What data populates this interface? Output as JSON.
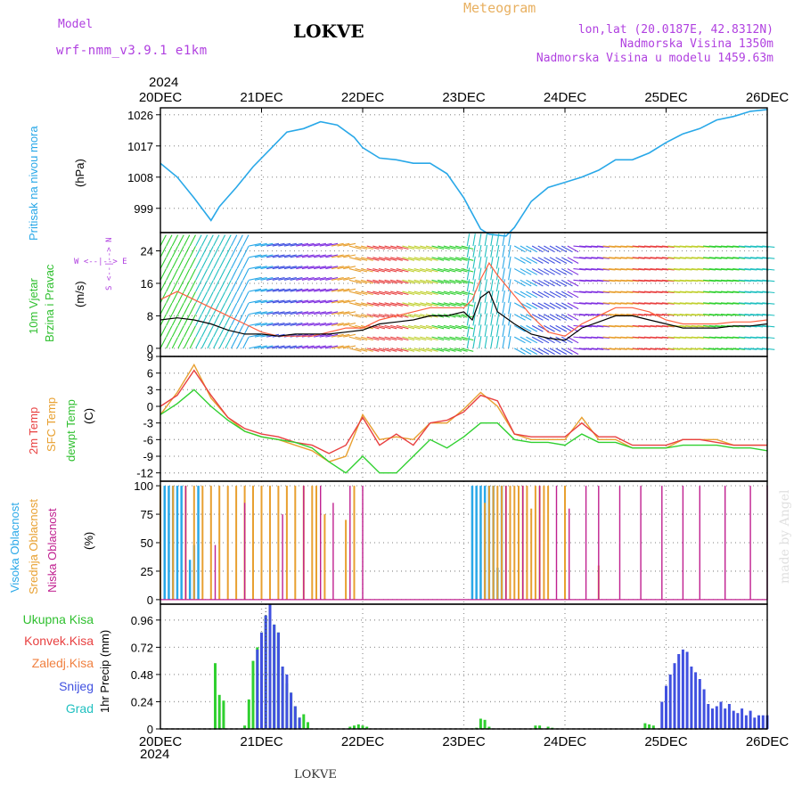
{
  "header": {
    "model_label": "Model",
    "model_name": "wrf-nmm_v3.9.1 e1km",
    "title": "LOKVE",
    "meteogram_label": "Meteogram",
    "lonlat": "lon,lat (20.0187E, 42.8312N)",
    "altitude": "Nadmorska Visina 1350m",
    "model_altitude": "Nadmorska Visina u modelu 1459.63m",
    "footer_title": "LOKVE",
    "watermark": "made by Angel"
  },
  "colors": {
    "pressure": "#29a8e8",
    "temp": "#e84040",
    "sfc_temp": "#e8a030",
    "dewpt": "#30d030",
    "high_cloud": "#29a8e8",
    "mid_cloud": "#e8a030",
    "low_cloud": "#c02090",
    "precip_total": "#30d030",
    "precip_snow": "#4050e0",
    "precip_grad": "#20c0c0"
  },
  "time_axis": {
    "year": "2024",
    "labels": [
      "20DEC",
      "21DEC",
      "22DEC",
      "23DEC",
      "24DEC",
      "25DEC",
      "26DEC"
    ]
  },
  "panel_labels": {
    "pressure": [
      "Pritisak na nivou mora",
      "(hPa)"
    ],
    "wind": [
      "10m Vjetar",
      "Brzina i Pravac",
      "(m/s)",
      "W <--|--> E",
      "S <--|--> N"
    ],
    "temp": [
      "2m Temp",
      "SFC Temp",
      "dewpt Temp",
      "(C)"
    ],
    "cloud": [
      "Visoka Oblacnost",
      "Srednja Oblacnost",
      "Niska Oblacnost",
      "(%)"
    ],
    "precip": [
      "Ukupna Kisa",
      "Konvek.Kisa",
      "Zaledj.Kisa",
      "Snijeg",
      "Grad",
      "1hr Precip (mm)"
    ]
  },
  "chart_data": [
    {
      "type": "line",
      "name": "pressure",
      "ylabel": "(hPa)",
      "yticks": [
        999,
        1008,
        1017,
        1026
      ],
      "ylim": [
        992,
        1028
      ],
      "xlim": [
        0,
        144
      ],
      "series": [
        {
          "name": "Pritisak na nivou mora",
          "x": [
            0,
            4,
            8,
            12,
            14,
            18,
            22,
            26,
            30,
            34,
            38,
            42,
            46,
            48,
            52,
            56,
            60,
            64,
            68,
            72,
            76,
            78,
            82,
            84,
            88,
            92,
            96,
            100,
            104,
            108,
            112,
            116,
            120,
            124,
            128,
            132,
            136,
            140,
            144
          ],
          "values": [
            1012,
            1008,
            1002,
            995.5,
            999.5,
            1005,
            1011,
            1016,
            1021,
            1022,
            1024,
            1023,
            1019.5,
            1016.5,
            1013.5,
            1013,
            1012,
            1012,
            1009,
            1002,
            993,
            991.5,
            991,
            993.5,
            1001,
            1005,
            1006.5,
            1008,
            1010,
            1013,
            1013,
            1015,
            1018,
            1020.5,
            1022,
            1024.5,
            1025.5,
            1027,
            1027.5
          ]
        }
      ]
    },
    {
      "type": "line",
      "name": "wind",
      "ylabel": "(m/s)",
      "yticks": [
        0,
        8,
        16,
        24
      ],
      "ylim": [
        -2,
        28.5
      ],
      "xlim": [
        0,
        144
      ],
      "series": [
        {
          "name": "mean",
          "x": [
            0,
            4,
            8,
            12,
            16,
            20,
            24,
            28,
            32,
            36,
            40,
            44,
            48,
            52,
            56,
            60,
            64,
            68,
            72,
            74,
            76,
            78,
            80,
            84,
            88,
            92,
            96,
            100,
            104,
            108,
            112,
            116,
            120,
            124,
            128,
            132,
            136,
            140,
            144
          ],
          "values": [
            7,
            7.5,
            7,
            6,
            4.5,
            3.5,
            3.5,
            3,
            3.5,
            3.5,
            3.5,
            4,
            4.5,
            6,
            6.5,
            7,
            8,
            8,
            9,
            7,
            12.5,
            14,
            9,
            6,
            3.5,
            2.5,
            2,
            5,
            6.5,
            8,
            8,
            7,
            6,
            5,
            5,
            5,
            5.5,
            5.5,
            6
          ]
        },
        {
          "name": "gust",
          "x": [
            0,
            4,
            8,
            12,
            16,
            20,
            24,
            28,
            32,
            36,
            40,
            44,
            48,
            52,
            56,
            60,
            64,
            68,
            72,
            74,
            76,
            78,
            80,
            84,
            88,
            92,
            96,
            100,
            104,
            108,
            112,
            116,
            120,
            124,
            128,
            132,
            136,
            140,
            144
          ],
          "values": [
            12,
            14,
            12,
            10,
            8,
            6,
            4,
            3,
            3,
            3,
            4,
            5,
            5,
            7,
            8,
            9,
            10,
            10,
            10,
            12,
            17,
            21,
            18,
            13,
            8,
            4,
            3,
            6,
            8,
            10,
            10,
            9,
            7,
            6,
            6,
            6,
            6.5,
            6.5,
            7
          ]
        }
      ]
    },
    {
      "type": "line",
      "name": "temperature",
      "ylabel": "(C)",
      "yticks": [
        -12,
        -9,
        -6,
        -3,
        0,
        3,
        6,
        9
      ],
      "ylim": [
        -13.5,
        9
      ],
      "xlim": [
        0,
        144
      ],
      "series": [
        {
          "name": "2m Temp",
          "x": [
            0,
            4,
            8,
            12,
            16,
            20,
            24,
            28,
            32,
            36,
            40,
            44,
            48,
            52,
            56,
            60,
            64,
            68,
            72,
            76,
            80,
            84,
            88,
            92,
            96,
            100,
            104,
            108,
            112,
            116,
            120,
            124,
            128,
            132,
            136,
            140,
            144
          ],
          "values": [
            0,
            2,
            6.5,
            2,
            -2,
            -4,
            -5,
            -5.5,
            -6.5,
            -7,
            -8.5,
            -7,
            -2,
            -7,
            -5,
            -7,
            -3,
            -2.5,
            -1,
            2,
            1,
            -5,
            -5.5,
            -5.5,
            -5.5,
            -3,
            -5.5,
            -5.5,
            -7,
            -7,
            -7,
            -6,
            -6,
            -6.5,
            -7,
            -7,
            -7
          ]
        },
        {
          "name": "SFC Temp",
          "x": [
            0,
            4,
            8,
            12,
            16,
            20,
            24,
            28,
            32,
            36,
            40,
            44,
            48,
            52,
            56,
            60,
            64,
            68,
            72,
            76,
            80,
            84,
            88,
            92,
            96,
            100,
            104,
            108,
            112,
            116,
            120,
            124,
            128,
            132,
            136,
            140,
            144
          ],
          "values": [
            -1.5,
            2.5,
            7.5,
            1.5,
            -2,
            -4.5,
            -5.5,
            -6,
            -7,
            -8,
            -10,
            -9,
            -1.5,
            -6,
            -5.5,
            -6,
            -3,
            -3,
            -0.5,
            2.5,
            0,
            -5,
            -6,
            -6,
            -6,
            -2,
            -6,
            -6,
            -7.5,
            -7.5,
            -7.5,
            -6,
            -6,
            -6,
            -7,
            -7,
            -7
          ]
        },
        {
          "name": "dewpt Temp",
          "x": [
            0,
            4,
            8,
            12,
            16,
            20,
            24,
            28,
            32,
            36,
            40,
            44,
            48,
            52,
            56,
            60,
            64,
            68,
            72,
            76,
            80,
            84,
            88,
            92,
            96,
            100,
            104,
            108,
            112,
            116,
            120,
            124,
            128,
            132,
            136,
            140,
            144
          ],
          "values": [
            -1.5,
            0.5,
            3,
            0,
            -2.5,
            -4.5,
            -5.5,
            -6,
            -6.5,
            -7.5,
            -10,
            -12,
            -9,
            -12,
            -12,
            -9,
            -6,
            -7.5,
            -5.5,
            -3,
            -3,
            -6,
            -6.5,
            -6.5,
            -7,
            -5,
            -6.5,
            -6.5,
            -7.5,
            -7.5,
            -7.5,
            -7,
            -7,
            -7,
            -7.5,
            -7.5,
            -8
          ]
        }
      ]
    },
    {
      "type": "bar",
      "name": "cloud cover",
      "ylabel": "(%)",
      "yticks": [
        0,
        25,
        50,
        75,
        100
      ],
      "ylim": [
        -4,
        104
      ],
      "xlim": [
        0,
        144
      ],
      "series": [
        {
          "name": "Visoka Oblacnost",
          "x": [
            1,
            2,
            3,
            4,
            5,
            7,
            8,
            9,
            74,
            75,
            76,
            77,
            78,
            79,
            80,
            81
          ],
          "values": [
            100,
            100,
            100,
            100,
            100,
            35,
            48,
            100,
            100,
            100,
            100,
            100,
            100,
            100,
            28,
            100
          ]
        },
        {
          "name": "Srednja Oblacnost",
          "x": [
            0,
            3,
            6,
            8,
            10,
            12,
            14,
            16,
            18,
            20,
            22,
            24,
            26,
            28,
            30,
            32,
            34,
            36,
            37,
            39,
            44,
            46,
            77,
            78,
            79,
            80,
            81,
            82,
            83,
            84,
            85,
            86,
            87,
            88,
            89,
            90,
            91,
            92,
            96,
            104
          ],
          "values": [
            100,
            100,
            100,
            100,
            100,
            100,
            100,
            100,
            100,
            100,
            100,
            100,
            100,
            100,
            100,
            100,
            100,
            100,
            100,
            75,
            70,
            100,
            85,
            100,
            100,
            100,
            100,
            100,
            100,
            100,
            100,
            100,
            100,
            80,
            100,
            100,
            100,
            100,
            100,
            30
          ]
        },
        {
          "name": "Niska Oblacnost",
          "x": [
            6,
            13,
            20,
            29,
            34,
            38,
            41,
            45,
            48,
            82,
            86,
            90,
            94,
            97,
            101,
            104,
            109,
            114,
            119,
            124,
            128,
            134,
            140,
            144
          ],
          "values": [
            100,
            48,
            85,
            75,
            100,
            100,
            85,
            100,
            100,
            100,
            100,
            100,
            100,
            80,
            100,
            100,
            100,
            100,
            100,
            100,
            100,
            100,
            100,
            100
          ]
        }
      ]
    },
    {
      "type": "bar",
      "name": "1hr precipitation",
      "ylabel": "1hr Precip (mm)",
      "yticks": [
        0,
        0.24,
        0.48,
        0.72,
        0.96
      ],
      "ylim": [
        0,
        1.1
      ],
      "xlim": [
        0,
        144
      ],
      "series": [
        {
          "name": "Ukupna Kisa",
          "x": [
            13,
            14,
            15,
            20,
            21,
            22,
            23,
            24,
            25,
            26,
            27,
            28,
            29,
            30,
            31,
            32,
            33,
            34,
            35,
            45,
            46,
            47,
            48,
            49,
            75,
            76,
            77,
            78,
            89,
            90,
            92,
            93,
            115,
            116,
            117
          ],
          "values": [
            0.58,
            0.3,
            0.25,
            0.03,
            0.26,
            0.6,
            0.72,
            0.85,
            1.0,
            1.1,
            0.92,
            0.85,
            0.55,
            0.4,
            0.32,
            0.2,
            0.1,
            0.13,
            0.06,
            0.02,
            0.03,
            0.04,
            0.03,
            0.02,
            0.01,
            0.09,
            0.08,
            0.02,
            0.03,
            0.03,
            0.02,
            0.01,
            0.05,
            0.04,
            0.03
          ]
        },
        {
          "name": "Snijeg",
          "x": [
            23,
            24,
            25,
            26,
            27,
            28,
            29,
            30,
            31,
            32,
            33,
            119,
            120,
            121,
            122,
            123,
            124,
            125,
            126,
            127,
            128,
            129,
            130,
            131,
            132,
            133,
            134,
            135,
            136,
            137,
            138,
            139,
            140,
            141,
            142,
            143,
            144
          ],
          "values": [
            0.7,
            0.85,
            1.0,
            1.1,
            0.92,
            0.85,
            0.55,
            0.48,
            0.32,
            0.2,
            0.1,
            0.24,
            0.38,
            0.48,
            0.58,
            0.66,
            0.7,
            0.68,
            0.55,
            0.5,
            0.44,
            0.35,
            0.22,
            0.18,
            0.2,
            0.24,
            0.18,
            0.22,
            0.16,
            0.14,
            0.18,
            0.12,
            0.16,
            0.1,
            0.12,
            0.12,
            0.12
          ]
        }
      ]
    }
  ]
}
